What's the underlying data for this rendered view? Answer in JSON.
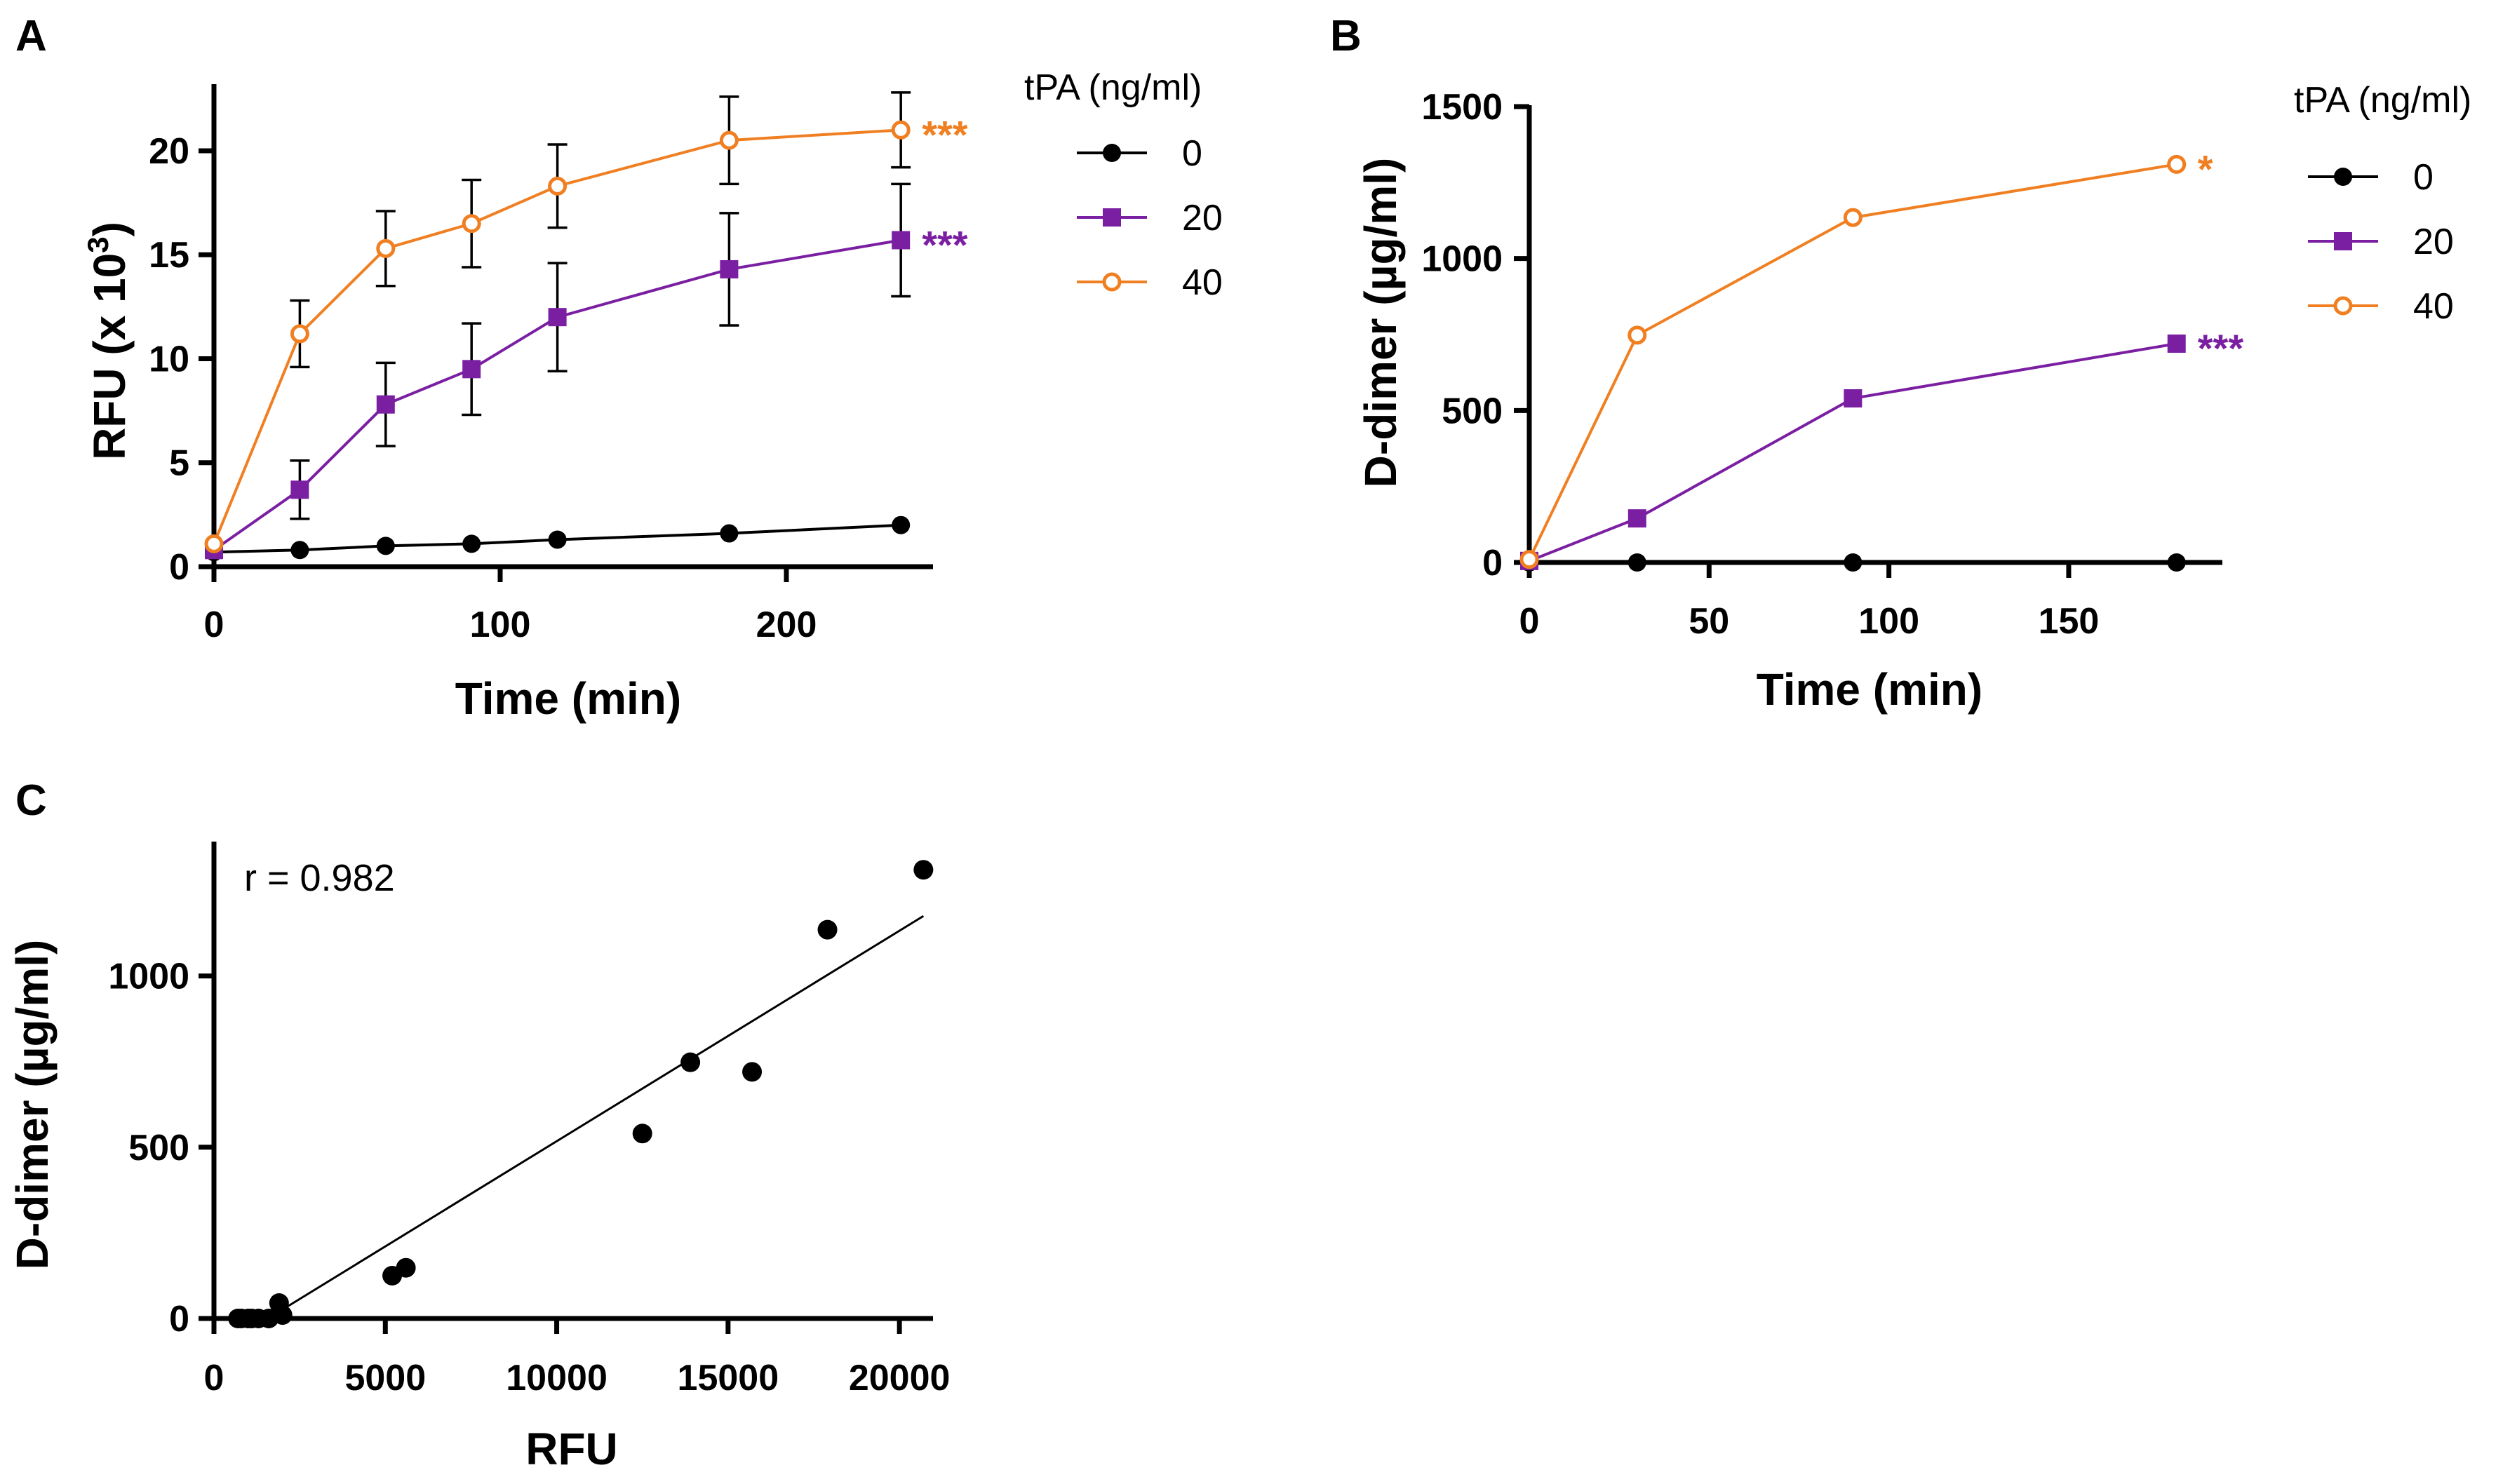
{
  "colors": {
    "s0": "#000000",
    "s20": "#7b1fa2",
    "s40": "#f07f22",
    "axis": "#000000"
  },
  "chart_data": [
    {
      "id": "A",
      "panel_label": "A",
      "type": "line",
      "xlabel": "Time (min)",
      "ylabel": "RFU (x 10",
      "ylabel_sup": "3",
      "ylabel_close": ")",
      "xlim": [
        0,
        250
      ],
      "ylim": [
        0,
        23
      ],
      "xticks": [
        0,
        100,
        200
      ],
      "yticks": [
        0,
        5,
        10,
        15,
        20
      ],
      "legend_title": "tPA (ng/ml)",
      "legend_position": "right",
      "series": [
        {
          "name": "0",
          "marker": "circle-filled",
          "color": "#000000",
          "x": [
            0,
            30,
            60,
            90,
            120,
            180,
            240
          ],
          "y": [
            0.7,
            0.8,
            1.0,
            1.1,
            1.3,
            1.6,
            2.0
          ],
          "err": [
            0,
            0,
            0,
            0,
            0,
            0,
            0
          ],
          "sig": ""
        },
        {
          "name": "20",
          "marker": "square-filled",
          "color": "#7b1fa2",
          "x": [
            0,
            30,
            60,
            90,
            120,
            180,
            240
          ],
          "y": [
            0.8,
            3.7,
            7.8,
            9.5,
            12.0,
            14.3,
            15.7
          ],
          "err": [
            0,
            1.4,
            2.0,
            2.2,
            2.6,
            2.7,
            2.7
          ],
          "sig": "***"
        },
        {
          "name": "40",
          "marker": "circle-open",
          "color": "#f07f22",
          "x": [
            0,
            30,
            60,
            90,
            120,
            180,
            240
          ],
          "y": [
            1.1,
            11.2,
            15.3,
            16.5,
            18.3,
            20.5,
            21.0
          ],
          "err": [
            0,
            1.6,
            1.8,
            2.1,
            2.0,
            2.1,
            1.8
          ],
          "sig": "***"
        }
      ]
    },
    {
      "id": "B",
      "panel_label": "B",
      "type": "line",
      "xlabel": "Time (min)",
      "ylabel": "D-dimer (µg/ml)",
      "xlim": [
        0,
        190
      ],
      "ylim": [
        0,
        1500
      ],
      "xticks": [
        0,
        50,
        100,
        150
      ],
      "yticks": [
        0,
        500,
        1000,
        1500
      ],
      "legend_title": "tPA (ng/ml)",
      "legend_position": "right",
      "series": [
        {
          "name": "0",
          "marker": "circle-filled",
          "color": "#000000",
          "x": [
            0,
            30,
            90,
            180
          ],
          "y": [
            0,
            0,
            0,
            0
          ],
          "sig": ""
        },
        {
          "name": "20",
          "marker": "square-filled",
          "color": "#7b1fa2",
          "x": [
            0,
            30,
            90,
            180
          ],
          "y": [
            5,
            145,
            540,
            720
          ],
          "sig": "***"
        },
        {
          "name": "40",
          "marker": "circle-open",
          "color": "#f07f22",
          "x": [
            0,
            30,
            90,
            180
          ],
          "y": [
            10,
            748,
            1135,
            1310
          ],
          "sig": "*"
        }
      ]
    },
    {
      "id": "C",
      "panel_label": "C",
      "type": "scatter",
      "xlabel": "RFU",
      "ylabel": "D-dimer (µg/ml)",
      "xlim": [
        0,
        21000
      ],
      "ylim": [
        0,
        1380
      ],
      "xticks": [
        0,
        5000,
        10000,
        15000,
        20000
      ],
      "yticks": [
        0,
        500,
        1000
      ],
      "annotation": "r = 0.982",
      "points": {
        "x": [
          700,
          800,
          1000,
          1100,
          1300,
          1600,
          2000,
          1900,
          5200,
          5600,
          12500,
          13900,
          15700,
          17900,
          20700
        ],
        "y": [
          0,
          0,
          0,
          0,
          0,
          0,
          10,
          45,
          125,
          148,
          540,
          748,
          720,
          1135,
          1310
        ]
      },
      "fit": {
        "x": [
          1900,
          20700
        ],
        "y": [
          20,
          1175
        ]
      }
    }
  ]
}
